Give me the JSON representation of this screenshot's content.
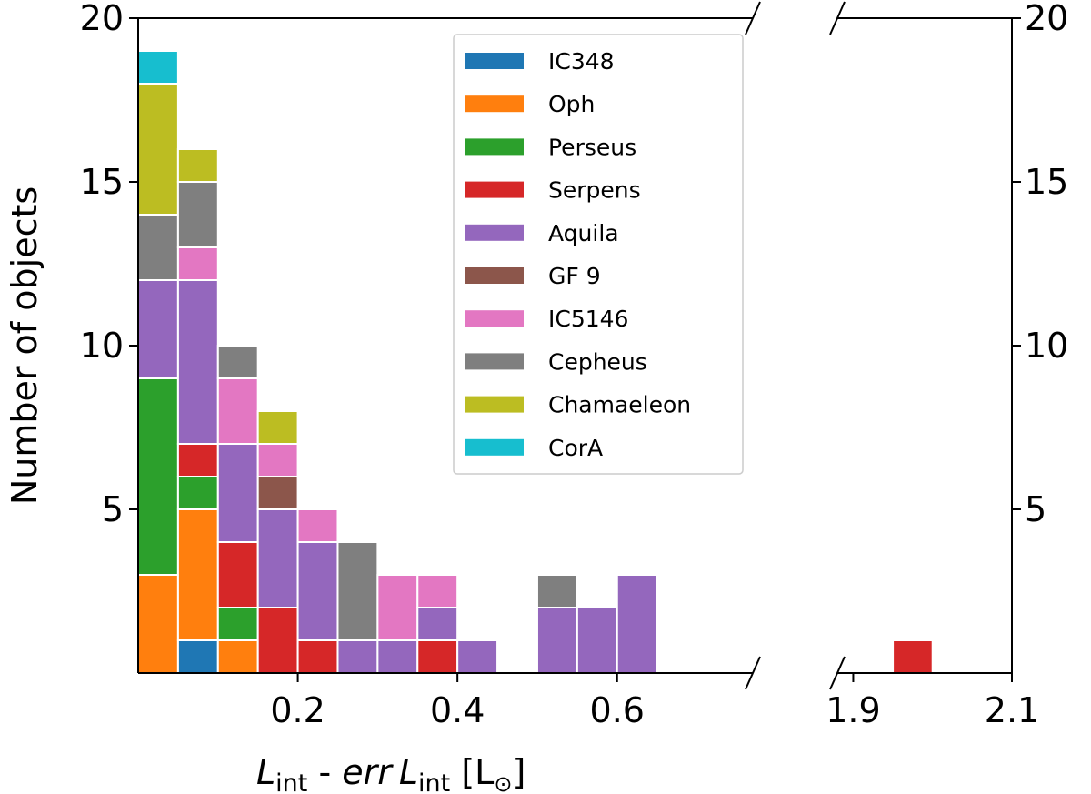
{
  "chart_data": {
    "type": "bar",
    "stacked": true,
    "ylabel": "Number of objects",
    "xlabel": {
      "var": "L",
      "sub": "int",
      "mid": " - ",
      "err": "err",
      "unit_open": " [L",
      "sun": "⊙",
      "unit_close": "]"
    },
    "left_panel": {
      "xlim": [
        0,
        0.77
      ],
      "xticks": [
        0.2,
        0.4,
        0.6
      ],
      "xtick_labels": [
        "0.2",
        "0.4",
        "0.6"
      ]
    },
    "right_panel": {
      "xlim": [
        1.88,
        2.1
      ],
      "xticks": [
        1.9,
        2.1
      ],
      "xtick_labels": [
        "1.9",
        "2.1"
      ]
    },
    "ylim": [
      0,
      20
    ],
    "yticks": [
      5,
      10,
      15,
      20
    ],
    "ytick_labels": [
      "5",
      "10",
      "15",
      "20"
    ],
    "bin_width": 0.05,
    "bins": [
      0.0,
      0.05,
      0.1,
      0.15,
      0.2,
      0.25,
      0.3,
      0.35,
      0.4,
      0.45,
      0.5,
      0.55,
      0.6,
      0.65,
      0.7,
      0.75,
      1.95
    ],
    "series": [
      {
        "name": "IC348",
        "color": "#1f77b4",
        "values": [
          0,
          1,
          0,
          0,
          0,
          0,
          0,
          0,
          0,
          0,
          0,
          0,
          0,
          0,
          0,
          0,
          0
        ]
      },
      {
        "name": "Oph",
        "color": "#ff7f0e",
        "values": [
          3,
          4,
          1,
          0,
          0,
          0,
          0,
          0,
          0,
          0,
          0,
          0,
          0,
          0,
          0,
          0,
          0
        ]
      },
      {
        "name": "Perseus",
        "color": "#2ca02c",
        "values": [
          6,
          1,
          1,
          0,
          0,
          0,
          0,
          0,
          0,
          0,
          0,
          0,
          0,
          0,
          0,
          0,
          0
        ]
      },
      {
        "name": "Serpens",
        "color": "#d62728",
        "values": [
          0,
          1,
          2,
          2,
          1,
          0,
          0,
          1,
          0,
          0,
          0,
          0,
          0,
          0,
          0,
          0,
          1
        ]
      },
      {
        "name": "Aquila",
        "color": "#9467bd",
        "values": [
          3,
          5,
          3,
          3,
          3,
          1,
          1,
          1,
          1,
          0,
          2,
          2,
          3,
          0,
          0,
          0,
          0
        ]
      },
      {
        "name": "GF 9",
        "color": "#8c564b",
        "values": [
          0,
          0,
          0,
          1,
          0,
          0,
          0,
          0,
          0,
          0,
          0,
          0,
          0,
          0,
          0,
          0,
          0
        ]
      },
      {
        "name": "IC5146",
        "color": "#e377c2",
        "values": [
          0,
          1,
          2,
          1,
          1,
          0,
          2,
          1,
          0,
          0,
          0,
          0,
          0,
          0,
          0,
          0,
          0
        ]
      },
      {
        "name": "Cepheus",
        "color": "#7f7f7f",
        "values": [
          2,
          2,
          1,
          0,
          0,
          3,
          0,
          0,
          0,
          0,
          1,
          0,
          0,
          0,
          0,
          0,
          0
        ]
      },
      {
        "name": "Chamaeleon",
        "color": "#bcbd22",
        "values": [
          4,
          1,
          0,
          1,
          0,
          0,
          0,
          0,
          0,
          0,
          0,
          0,
          0,
          0,
          0,
          0,
          0
        ]
      },
      {
        "name": "CorA",
        "color": "#17becf",
        "values": [
          1,
          0,
          0,
          0,
          0,
          0,
          0,
          0,
          0,
          0,
          0,
          0,
          0,
          0,
          0,
          0,
          0
        ]
      }
    ],
    "legend_position": "top-center",
    "broken_x_axis": true
  }
}
